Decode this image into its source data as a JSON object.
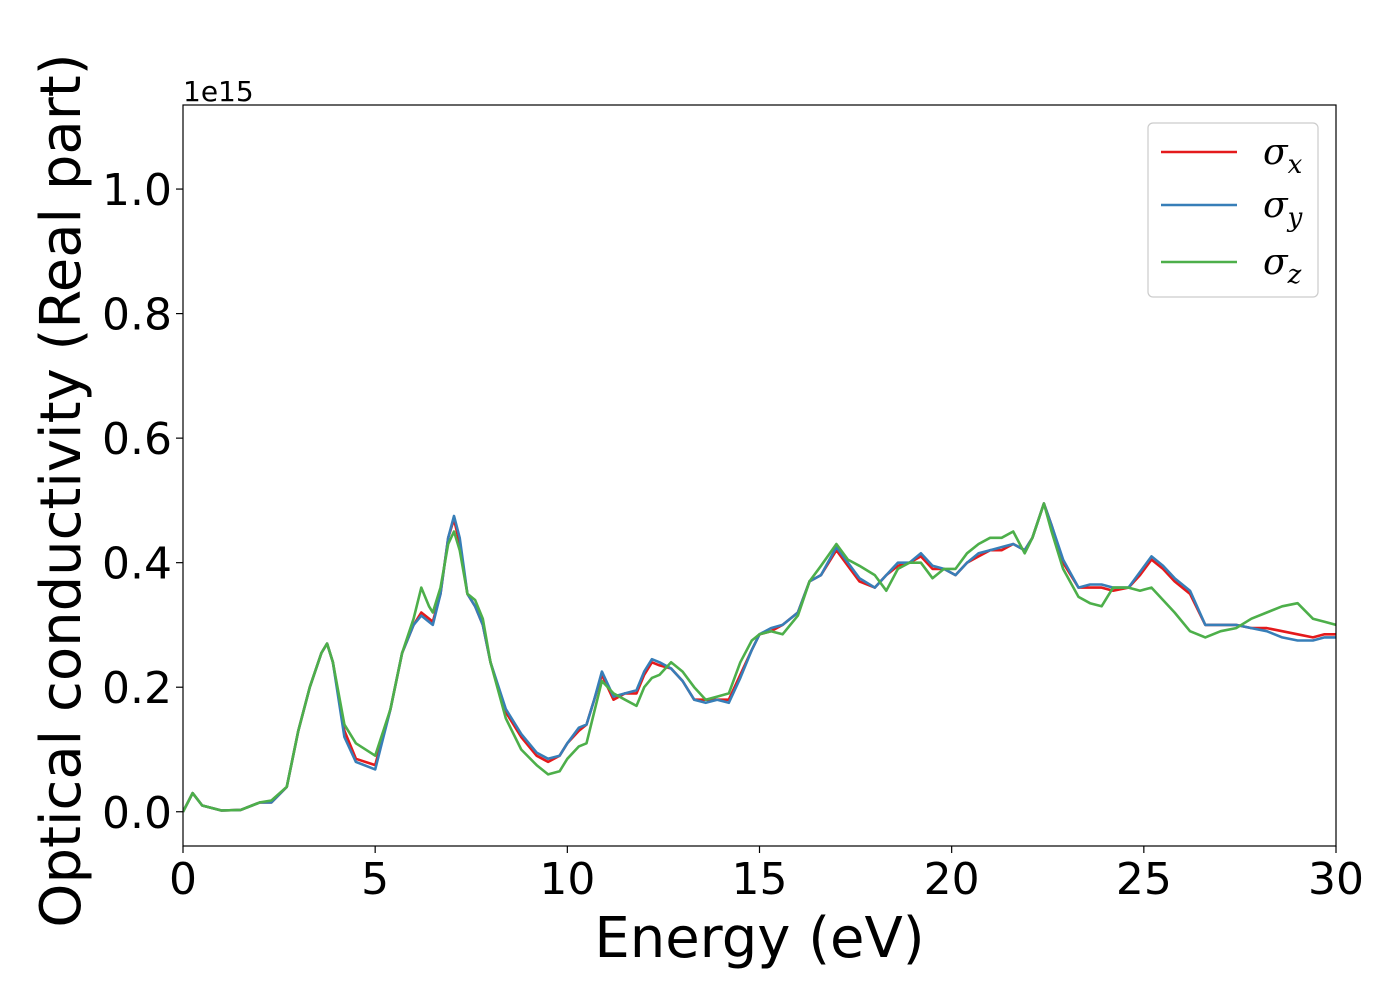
{
  "chart_data": {
    "type": "line",
    "xlabel": "Energy (eV)",
    "ylabel": "Optical conductivity (Real part)",
    "y_offset_label": "1e15",
    "xlim": [
      0,
      30
    ],
    "ylim": [
      -0.055,
      1.135
    ],
    "xticks": [
      0,
      5,
      10,
      15,
      20,
      25,
      30
    ],
    "xtick_labels": [
      "0",
      "5",
      "10",
      "15",
      "20",
      "25",
      "30"
    ],
    "yticks": [
      0.0,
      0.2,
      0.4,
      0.6,
      0.8,
      1.0
    ],
    "ytick_labels": [
      "0.0",
      "0.2",
      "0.4",
      "0.6",
      "0.8",
      "1.0"
    ],
    "grid": false,
    "legend_position": "top-right",
    "series": [
      {
        "name": "σ",
        "subscript": "x",
        "color": "#e41a1c",
        "x": [
          0,
          0.25,
          0.5,
          1,
          1.5,
          2,
          2.3,
          2.7,
          3,
          3.3,
          3.6,
          3.75,
          3.9,
          4.2,
          4.5,
          5,
          5.4,
          5.7,
          6,
          6.2,
          6.4,
          6.5,
          6.7,
          6.9,
          7.05,
          7.2,
          7.4,
          7.6,
          7.8,
          8,
          8.4,
          8.8,
          9.2,
          9.5,
          9.8,
          10,
          10.3,
          10.5,
          10.7,
          10.9,
          11.2,
          11.5,
          11.8,
          12,
          12.2,
          12.4,
          12.7,
          13,
          13.3,
          13.6,
          13.9,
          14.2,
          14.5,
          14.8,
          15,
          15.3,
          15.6,
          16,
          16.3,
          16.6,
          17,
          17.3,
          17.6,
          18,
          18.3,
          18.6,
          18.9,
          19.2,
          19.5,
          19.8,
          20.1,
          20.4,
          20.7,
          21,
          21.3,
          21.6,
          21.9,
          22.1,
          22.4,
          22.6,
          22.9,
          23.3,
          23.6,
          23.9,
          24.2,
          24.6,
          24.9,
          25.2,
          25.5,
          25.8,
          26.2,
          26.6,
          27,
          27.4,
          27.8,
          28.2,
          28.6,
          29,
          29.4,
          29.7,
          30
        ],
        "y": [
          0.0,
          0.03,
          0.01,
          0.002,
          0.003,
          0.015,
          0.015,
          0.04,
          0.13,
          0.2,
          0.255,
          0.27,
          0.24,
          0.13,
          0.085,
          0.075,
          0.165,
          0.255,
          0.3,
          0.32,
          0.31,
          0.305,
          0.35,
          0.44,
          0.47,
          0.43,
          0.35,
          0.33,
          0.3,
          0.24,
          0.16,
          0.12,
          0.09,
          0.08,
          0.09,
          0.11,
          0.13,
          0.14,
          0.18,
          0.22,
          0.18,
          0.19,
          0.19,
          0.22,
          0.24,
          0.235,
          0.23,
          0.21,
          0.18,
          0.18,
          0.18,
          0.18,
          0.22,
          0.26,
          0.285,
          0.29,
          0.3,
          0.32,
          0.37,
          0.38,
          0.42,
          0.395,
          0.37,
          0.36,
          0.38,
          0.395,
          0.4,
          0.41,
          0.39,
          0.39,
          0.38,
          0.4,
          0.41,
          0.42,
          0.42,
          0.43,
          0.42,
          0.44,
          0.495,
          0.46,
          0.4,
          0.36,
          0.36,
          0.36,
          0.355,
          0.36,
          0.38,
          0.405,
          0.39,
          0.37,
          0.35,
          0.3,
          0.3,
          0.3,
          0.295,
          0.295,
          0.29,
          0.285,
          0.28,
          0.285,
          0.285
        ]
      },
      {
        "name": "σ",
        "subscript": "y",
        "color": "#377eb8",
        "x": [
          0,
          0.25,
          0.5,
          1,
          1.5,
          2,
          2.3,
          2.7,
          3,
          3.3,
          3.6,
          3.75,
          3.9,
          4.2,
          4.5,
          5,
          5.4,
          5.7,
          6,
          6.2,
          6.4,
          6.5,
          6.7,
          6.9,
          7.05,
          7.2,
          7.4,
          7.6,
          7.8,
          8,
          8.4,
          8.8,
          9.2,
          9.5,
          9.8,
          10,
          10.3,
          10.5,
          10.7,
          10.9,
          11.2,
          11.5,
          11.8,
          12,
          12.2,
          12.4,
          12.7,
          13,
          13.3,
          13.6,
          13.9,
          14.2,
          14.5,
          14.8,
          15,
          15.3,
          15.6,
          16,
          16.3,
          16.6,
          17,
          17.3,
          17.6,
          18,
          18.3,
          18.6,
          18.9,
          19.2,
          19.5,
          19.8,
          20.1,
          20.4,
          20.7,
          21,
          21.3,
          21.6,
          21.9,
          22.1,
          22.4,
          22.6,
          22.9,
          23.3,
          23.6,
          23.9,
          24.2,
          24.6,
          24.9,
          25.2,
          25.5,
          25.8,
          26.2,
          26.6,
          27,
          27.4,
          27.8,
          28.2,
          28.6,
          29,
          29.4,
          29.7,
          30
        ],
        "y": [
          0.0,
          0.03,
          0.01,
          0.002,
          0.003,
          0.015,
          0.015,
          0.04,
          0.13,
          0.2,
          0.255,
          0.27,
          0.24,
          0.12,
          0.08,
          0.068,
          0.165,
          0.255,
          0.3,
          0.315,
          0.305,
          0.3,
          0.35,
          0.44,
          0.475,
          0.44,
          0.35,
          0.33,
          0.3,
          0.24,
          0.165,
          0.125,
          0.095,
          0.085,
          0.09,
          0.11,
          0.135,
          0.14,
          0.18,
          0.225,
          0.185,
          0.19,
          0.195,
          0.225,
          0.245,
          0.24,
          0.23,
          0.21,
          0.18,
          0.175,
          0.18,
          0.175,
          0.215,
          0.26,
          0.285,
          0.295,
          0.3,
          0.32,
          0.37,
          0.38,
          0.425,
          0.4,
          0.375,
          0.36,
          0.38,
          0.4,
          0.4,
          0.415,
          0.395,
          0.39,
          0.38,
          0.4,
          0.415,
          0.42,
          0.425,
          0.43,
          0.42,
          0.44,
          0.495,
          0.46,
          0.405,
          0.36,
          0.365,
          0.365,
          0.36,
          0.36,
          0.385,
          0.41,
          0.395,
          0.375,
          0.355,
          0.3,
          0.3,
          0.3,
          0.295,
          0.29,
          0.28,
          0.275,
          0.275,
          0.28,
          0.28
        ]
      },
      {
        "name": "σ",
        "subscript": "z",
        "color": "#4daf4a",
        "x": [
          0,
          0.25,
          0.5,
          1,
          1.5,
          2,
          2.3,
          2.7,
          3,
          3.3,
          3.6,
          3.75,
          3.9,
          4.2,
          4.5,
          5,
          5.4,
          5.7,
          6,
          6.2,
          6.4,
          6.5,
          6.7,
          6.9,
          7.05,
          7.2,
          7.4,
          7.6,
          7.8,
          8,
          8.4,
          8.8,
          9.2,
          9.5,
          9.8,
          10,
          10.3,
          10.5,
          10.7,
          10.9,
          11.2,
          11.5,
          11.8,
          12,
          12.2,
          12.4,
          12.7,
          13,
          13.3,
          13.6,
          13.9,
          14.2,
          14.5,
          14.8,
          15,
          15.3,
          15.6,
          16,
          16.3,
          16.6,
          17,
          17.3,
          17.6,
          18,
          18.3,
          18.6,
          18.9,
          19.2,
          19.5,
          19.8,
          20.1,
          20.4,
          20.7,
          21,
          21.3,
          21.6,
          21.9,
          22.1,
          22.4,
          22.6,
          22.9,
          23.3,
          23.6,
          23.9,
          24.2,
          24.6,
          24.9,
          25.2,
          25.5,
          25.8,
          26.2,
          26.6,
          27,
          27.4,
          27.8,
          28.2,
          28.6,
          29,
          29.4,
          29.7,
          30
        ],
        "y": [
          0.0,
          0.03,
          0.01,
          0.002,
          0.003,
          0.015,
          0.018,
          0.04,
          0.13,
          0.2,
          0.255,
          0.27,
          0.24,
          0.14,
          0.11,
          0.09,
          0.165,
          0.255,
          0.31,
          0.36,
          0.33,
          0.32,
          0.36,
          0.43,
          0.45,
          0.42,
          0.35,
          0.34,
          0.31,
          0.24,
          0.15,
          0.1,
          0.075,
          0.06,
          0.065,
          0.085,
          0.105,
          0.11,
          0.16,
          0.21,
          0.19,
          0.18,
          0.17,
          0.2,
          0.215,
          0.22,
          0.24,
          0.225,
          0.2,
          0.18,
          0.185,
          0.19,
          0.24,
          0.275,
          0.285,
          0.29,
          0.285,
          0.315,
          0.37,
          0.395,
          0.43,
          0.405,
          0.395,
          0.38,
          0.355,
          0.39,
          0.4,
          0.4,
          0.375,
          0.39,
          0.39,
          0.415,
          0.43,
          0.44,
          0.44,
          0.45,
          0.415,
          0.44,
          0.495,
          0.45,
          0.39,
          0.345,
          0.335,
          0.33,
          0.36,
          0.36,
          0.355,
          0.36,
          0.34,
          0.32,
          0.29,
          0.28,
          0.29,
          0.295,
          0.31,
          0.32,
          0.33,
          0.335,
          0.31,
          0.305,
          0.3
        ]
      }
    ]
  }
}
